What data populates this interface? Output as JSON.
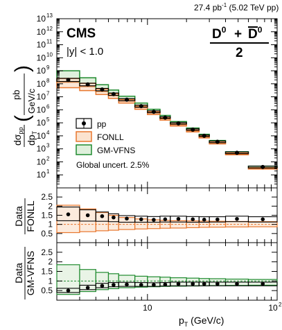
{
  "header": {
    "lumi": "27.4 pb",
    "lumi_exp": "-1",
    "energy": " (5.02 TeV pp)"
  },
  "labels": {
    "experiment": "CMS",
    "rapidity": "|y| < 1.0",
    "particle_d0": "D",
    "particle_sup": "0",
    "particle_plus": "+",
    "particle_half": "2",
    "x_axis_p": "p",
    "x_axis_sub": "T",
    "x_axis_units": " (GeV/c)",
    "y_top_sigma": "dσ",
    "y_top_pp": "pp",
    "y_top_dp": "dp",
    "y_top_T": "T",
    "y_top_pb": "pb",
    "y_top_units": "GeV/c",
    "ratio1_num": "Data",
    "ratio1_den": "FONLL",
    "ratio2_num": "Data",
    "ratio2_den": "GM-VFNS"
  },
  "legend": {
    "entries": [
      "pp",
      "FONLL",
      "GM-VFNS"
    ],
    "global_uncert": "Global uncert. 2.5%"
  },
  "colors": {
    "data": "#000000",
    "fonll": "#e8772e",
    "fonll_fill": "#fbe3cf",
    "gmvfns": "#1e8a2e",
    "gmvfns_fill": "#dff0dc"
  },
  "chart_data": [
    {
      "type": "scatter",
      "panel": "cross-section",
      "xscale": "log",
      "yscale": "log",
      "xlim": [
        2,
        100
      ],
      "ylim": [
        1,
        10000000000000
      ],
      "ytick_labels": [
        "10",
        "10",
        "10",
        "10",
        "10",
        "10",
        "10",
        "10",
        "10",
        "10",
        "10",
        "10",
        "10"
      ],
      "ytick_exps": [
        "1",
        "2",
        "3",
        "4",
        "5",
        "6",
        "7",
        "8",
        "9",
        "10",
        "11",
        "12",
        "13"
      ],
      "bins": [
        [
          2,
          3
        ],
        [
          3,
          4
        ],
        [
          4,
          5
        ],
        [
          5,
          6
        ],
        [
          6,
          8
        ],
        [
          8,
          10
        ],
        [
          10,
          12.5
        ],
        [
          12.5,
          15
        ],
        [
          15,
          20
        ],
        [
          20,
          25
        ],
        [
          25,
          30
        ],
        [
          30,
          40
        ],
        [
          40,
          60
        ],
        [
          60,
          100
        ]
      ],
      "series": [
        {
          "name": "pp",
          "values": [
            200000000,
            90000000,
            36000000,
            16000000,
            6000000,
            1900000,
            700000,
            250000,
            90000,
            30000,
            10000,
            3500,
            500,
            40
          ],
          "err_low": [
            150000000,
            70000000,
            29000000,
            13000000,
            5000000,
            1600000,
            600000,
            220000,
            80000,
            27000,
            9000,
            3000,
            430,
            34
          ],
          "err_high": [
            260000000,
            110000000,
            44000000,
            19500000,
            7200000,
            2300000,
            830000,
            290000,
            105000,
            35000,
            11500,
            4000,
            580,
            47
          ]
        },
        {
          "name": "FONLL",
          "central": [
            130000000,
            60000000,
            25000000,
            12000000,
            4600000,
            1500000,
            560000,
            200000,
            70000,
            24000,
            8200,
            2800,
            410,
            32
          ],
          "low": [
            50000000,
            30000000,
            15000000,
            7500000,
            3300000,
            1100000,
            430000,
            160000,
            57000,
            20000,
            6900,
            2400,
            350,
            28
          ],
          "high": [
            260000000,
            110000000,
            40000000,
            17500000,
            6200000,
            1900000,
            690000,
            240000,
            84000,
            28500,
            9600,
            3250,
            470,
            36
          ]
        },
        {
          "name": "GM-VFNS",
          "central": [
            400000000,
            140000000,
            48000000,
            20000000,
            7200000,
            2300000,
            810000,
            280000,
            97000,
            32000,
            10700,
            3600,
            510,
            40
          ],
          "low": [
            130000000,
            60000000,
            25000000,
            12000000,
            4800000,
            1600000,
            620000,
            220000,
            80000,
            27000,
            9200,
            3100,
            450,
            35
          ],
          "high": [
            1000000000,
            290000000,
            85000000,
            33000000,
            11000000,
            3300000,
            1100000,
            370000,
            125000,
            40000,
            13200,
            4400,
            600,
            47
          ]
        }
      ]
    },
    {
      "type": "scatter",
      "panel": "ratio Data/FONLL",
      "ylim": [
        0,
        3
      ],
      "ytick_labels": [
        "0.5",
        "1",
        "1.5",
        "2",
        "2.5"
      ],
      "series": [
        {
          "name": "Data/FONLL",
          "values": [
            1.55,
            1.5,
            1.45,
            1.38,
            1.32,
            1.28,
            1.25,
            1.28,
            1.3,
            1.28,
            1.26,
            1.27,
            1.3,
            1.28
          ],
          "box_low": [
            1.2,
            1.18,
            1.17,
            1.15,
            1.12,
            1.12,
            1.12,
            1.13,
            1.13,
            1.12,
            1.12,
            1.13,
            1.15,
            1.13
          ],
          "box_high": [
            1.95,
            1.8,
            1.68,
            1.58,
            1.48,
            1.45,
            1.43,
            1.45,
            1.45,
            1.43,
            1.42,
            1.42,
            1.45,
            1.42
          ]
        },
        {
          "name": "FONLL band",
          "low": [
            0.55,
            0.6,
            0.65,
            0.68,
            0.72,
            0.75,
            0.77,
            0.79,
            0.8,
            0.82,
            0.84,
            0.85,
            0.86,
            0.87
          ],
          "high": [
            2.05,
            1.85,
            1.65,
            1.5,
            1.38,
            1.3,
            1.25,
            1.22,
            1.2,
            1.19,
            1.18,
            1.17,
            1.16,
            1.15
          ]
        }
      ]
    },
    {
      "type": "scatter",
      "panel": "ratio Data/GM-VFNS",
      "ylim": [
        0,
        3
      ],
      "ytick_labels": [
        "0.5",
        "1",
        "1.5",
        "2",
        "2.5"
      ],
      "series": [
        {
          "name": "Data/GM-VFNS",
          "values": [
            0.5,
            0.65,
            0.75,
            0.8,
            0.82,
            0.8,
            0.8,
            0.82,
            0.85,
            0.85,
            0.85,
            0.85,
            0.85,
            0.85
          ],
          "box_low": [
            0.4,
            0.55,
            0.65,
            0.7,
            0.72,
            0.72,
            0.72,
            0.74,
            0.75,
            0.75,
            0.75,
            0.75,
            0.75,
            0.75
          ],
          "box_high": [
            0.62,
            0.78,
            0.88,
            0.92,
            0.93,
            0.92,
            0.91,
            0.92,
            0.94,
            0.94,
            0.94,
            0.94,
            0.94,
            0.94
          ]
        },
        {
          "name": "GM-VFNS band",
          "low": [
            0.3,
            0.45,
            0.55,
            0.6,
            0.65,
            0.68,
            0.7,
            0.72,
            0.73,
            0.74,
            0.75,
            0.76,
            0.77,
            0.78
          ],
          "high": [
            1.85,
            1.6,
            1.45,
            1.38,
            1.3,
            1.25,
            1.22,
            1.2,
            1.17,
            1.15,
            1.13,
            1.12,
            1.1,
            1.08
          ]
        }
      ]
    }
  ],
  "x_tick_labels": {
    "ten": "10",
    "hundred_base": "10",
    "hundred_exp": "2"
  }
}
